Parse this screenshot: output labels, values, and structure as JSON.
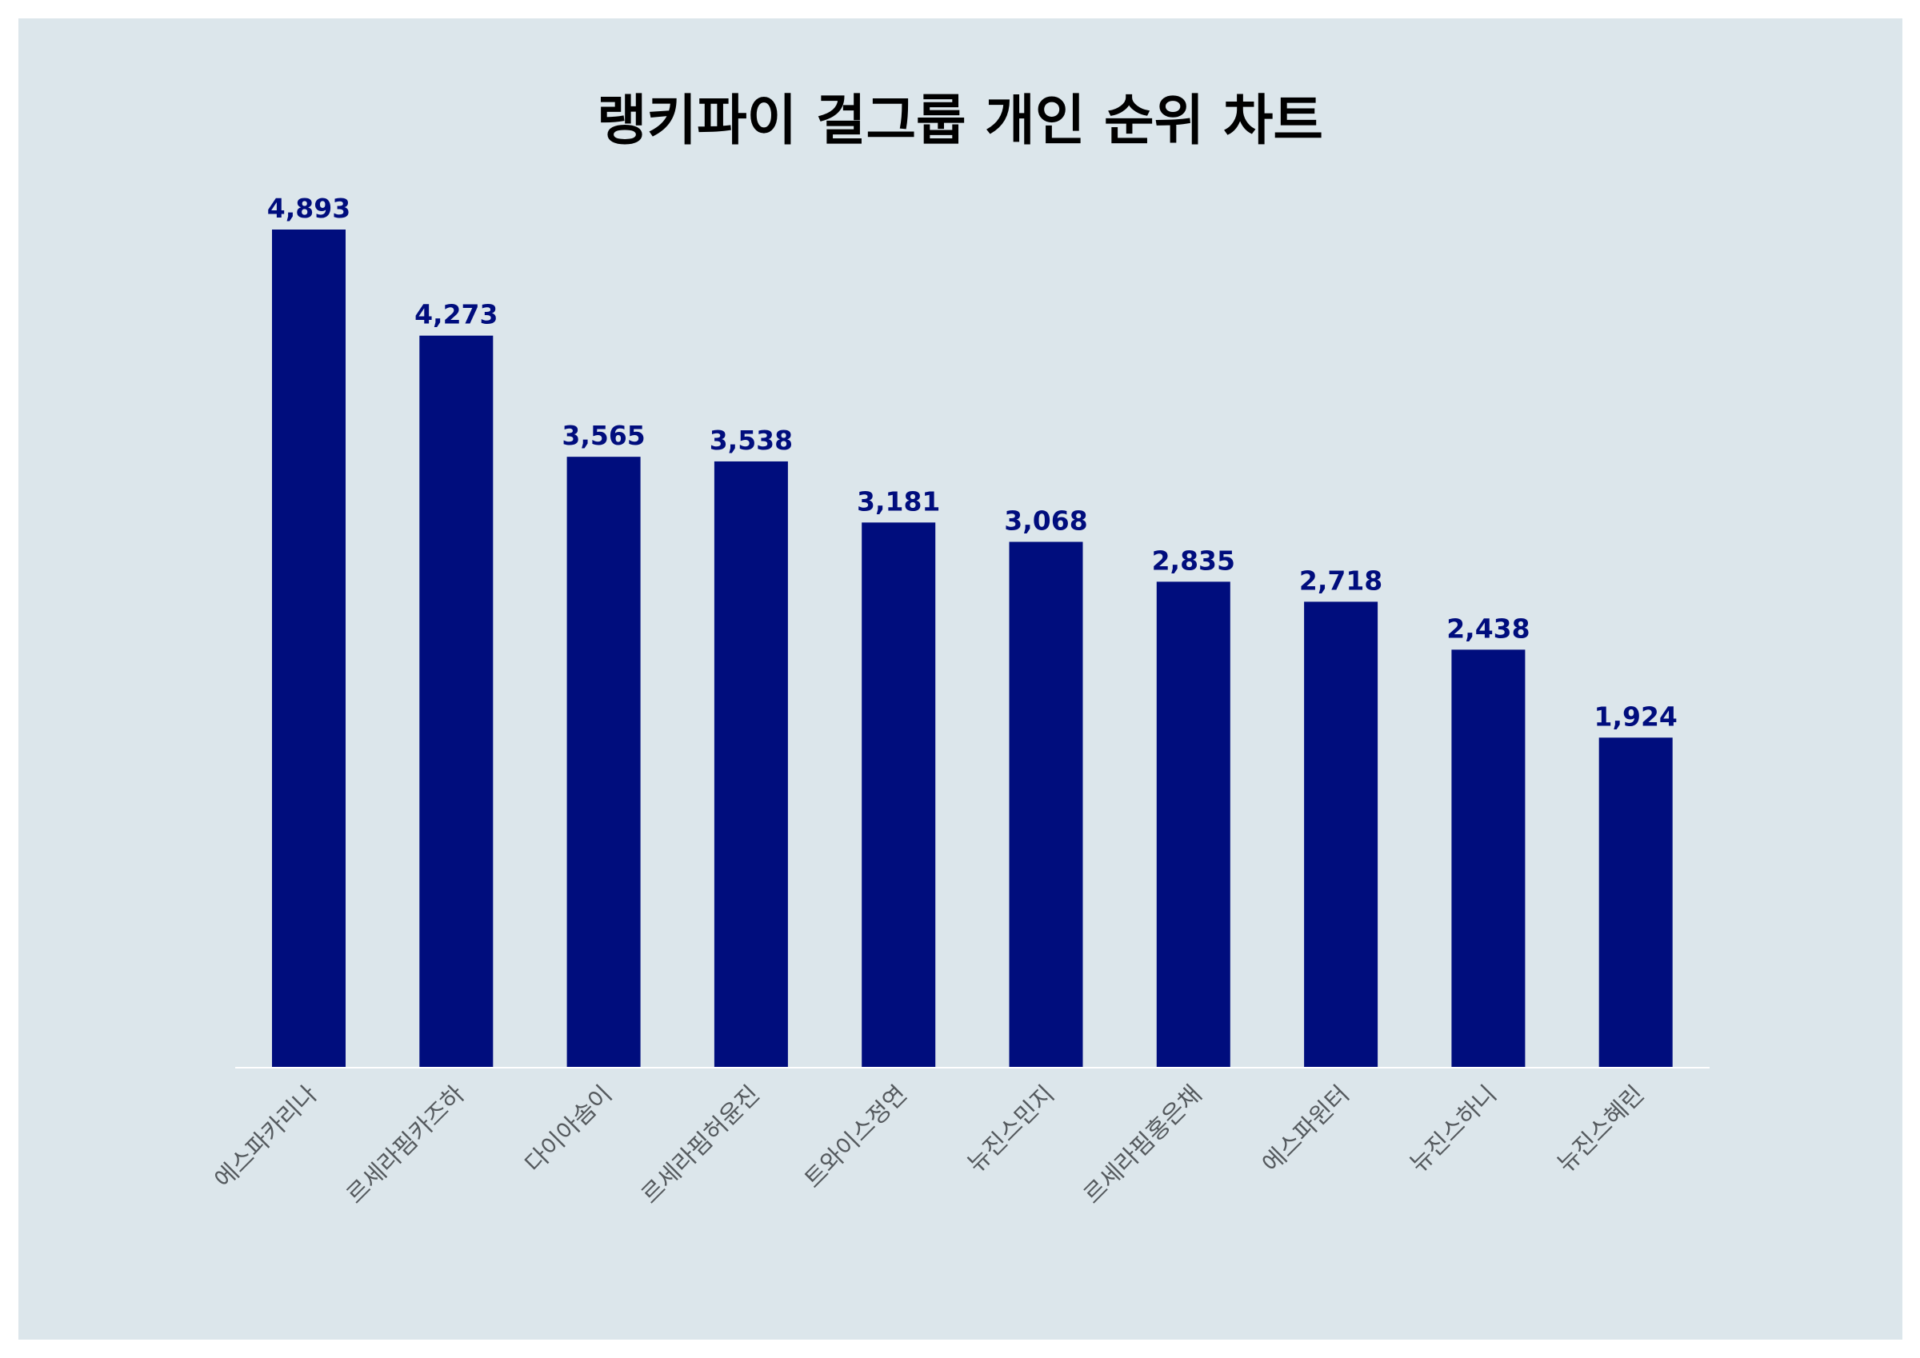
{
  "chart_data": {
    "type": "bar",
    "title": "랭키파이 걸그룹 개인 순위 차트",
    "categories": [
      "에스파카리나",
      "르세라핌카즈하",
      "다이아솜이",
      "르세라핌허윤진",
      "트와이스정연",
      "뉴진스민지",
      "르세라핌홍은채",
      "에스파윈터",
      "뉴진스하니",
      "뉴진스혜린"
    ],
    "series": [
      {
        "values": [
          4893,
          4273,
          3565,
          3538,
          3181,
          3068,
          2835,
          2718,
          2438,
          1924
        ],
        "labels": [
          "4,893",
          "4,273",
          "3,565",
          "3,538",
          "3,181",
          "3,068",
          "2,835",
          "2,718",
          "2,438",
          "1,924"
        ]
      }
    ],
    "ylim": [
      0,
      4893
    ],
    "grid": false,
    "legend": "none",
    "colors": {
      "bar": "#000d7d",
      "background": "#dce6eb",
      "axis": "#ffffff",
      "tick_text": "#555a5e"
    }
  }
}
